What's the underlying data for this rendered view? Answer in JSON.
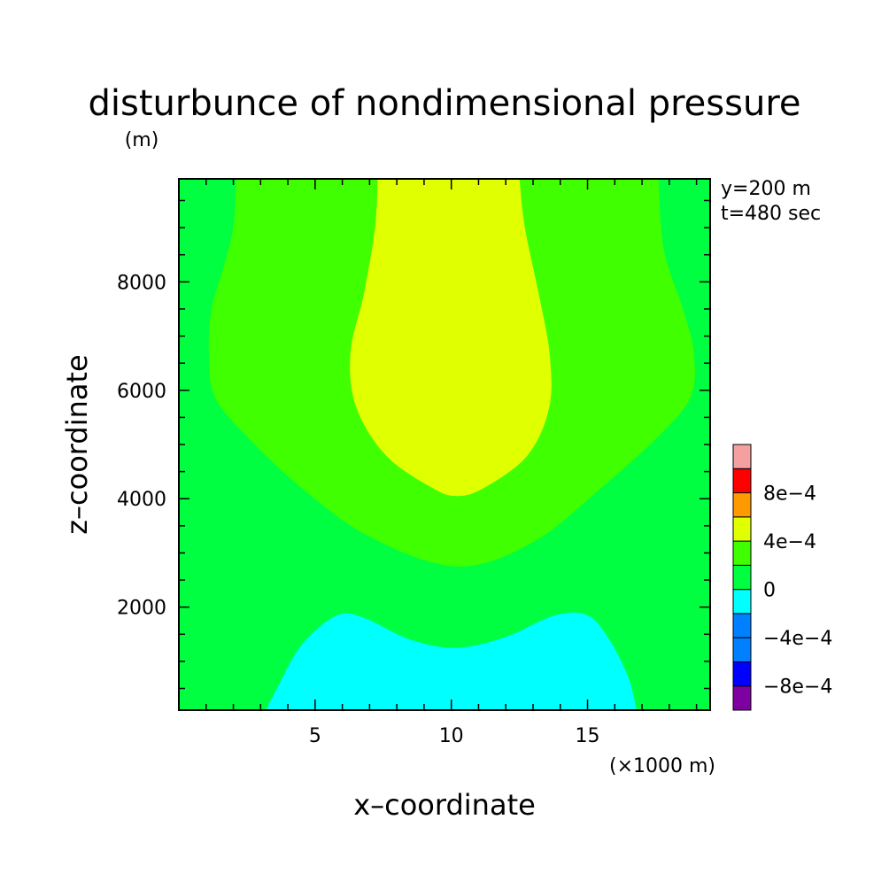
{
  "chart_data": {
    "type": "heatmap",
    "title": "disturbunce of nondimensional pressure",
    "y_unit_label": "(m)",
    "x_unit_label": "(×1000 m)",
    "xlabel": "x–coordinate",
    "ylabel": "z–coordinate",
    "info_lines": [
      "y=200 m",
      "t=480 sec"
    ],
    "xlim": [
      0,
      19.5
    ],
    "ylim": [
      100,
      9900
    ],
    "x_ticks": [
      5,
      10,
      15
    ],
    "x_tick_labels": [
      "5",
      "10",
      "15"
    ],
    "y_ticks": [
      2000,
      4000,
      6000,
      8000
    ],
    "y_tick_labels": [
      "2000",
      "4000",
      "6000",
      "8000"
    ],
    "colorbar": {
      "levels": [
        {
          "range": [
            -0.001,
            -0.0008
          ],
          "color": "#7f00a0"
        },
        {
          "range": [
            -0.0008,
            -0.0006
          ],
          "color": "#0000ff"
        },
        {
          "range": [
            -0.0006,
            -0.0004
          ],
          "color": "#0080ff"
        },
        {
          "range": [
            -0.0004,
            -0.0002
          ],
          "color": "#0080ff"
        },
        {
          "range": [
            -0.0002,
            0
          ],
          "color": "#00ffff"
        },
        {
          "range": [
            0,
            0.0002
          ],
          "color": "#00ff40"
        },
        {
          "range": [
            0.0002,
            0.0004
          ],
          "color": "#40ff00"
        },
        {
          "range": [
            0.0004,
            0.0006
          ],
          "color": "#e0ff00"
        },
        {
          "range": [
            0.0006,
            0.0008
          ],
          "color": "#ff9900"
        },
        {
          "range": [
            0.0008,
            0.001
          ],
          "color": "#ff0000"
        },
        {
          "range": [
            0.001,
            0.0012
          ],
          "color": "#f5a0a0"
        }
      ],
      "tick_labels": [
        "8e−4",
        "4e−4",
        "0",
        "−4e−4",
        "−8e−4"
      ]
    },
    "regions": [
      {
        "name": "background",
        "level": "0 to 2e-4",
        "color": "#00ff40",
        "outline": []
      },
      {
        "name": "positive-band",
        "level": "2e-4 to 4e-4",
        "color": "#40ff00",
        "outline": [
          [
            2.1,
            9900
          ],
          [
            2.0,
            9000
          ],
          [
            1.6,
            8200
          ],
          [
            1.2,
            7500
          ],
          [
            1.1,
            6700
          ],
          [
            1.3,
            5900
          ],
          [
            2.4,
            5200
          ],
          [
            4.5,
            4200
          ],
          [
            7.0,
            3300
          ],
          [
            10.2,
            2750
          ],
          [
            13.0,
            3200
          ],
          [
            15.5,
            4200
          ],
          [
            17.7,
            5200
          ],
          [
            18.8,
            5900
          ],
          [
            18.9,
            6700
          ],
          [
            18.5,
            7500
          ],
          [
            17.8,
            8600
          ],
          [
            17.6,
            9900
          ]
        ]
      },
      {
        "name": "high-pressure-core",
        "level": "4e-4 to 6e-4",
        "color": "#e0ff00",
        "outline": [
          [
            7.3,
            9900
          ],
          [
            7.2,
            9000
          ],
          [
            6.8,
            7800
          ],
          [
            6.3,
            6700
          ],
          [
            6.5,
            5700
          ],
          [
            7.6,
            4800
          ],
          [
            9.3,
            4200
          ],
          [
            10.2,
            4050
          ],
          [
            11.2,
            4200
          ],
          [
            12.8,
            4800
          ],
          [
            13.6,
            5700
          ],
          [
            13.6,
            6700
          ],
          [
            13.2,
            7800
          ],
          [
            12.7,
            9000
          ],
          [
            12.5,
            9900
          ]
        ]
      },
      {
        "name": "low-pressure-base",
        "level": "-2e-4 to 0",
        "color": "#00ffff",
        "outline": [
          [
            3.2,
            100
          ],
          [
            3.6,
            500
          ],
          [
            4.5,
            1300
          ],
          [
            5.8,
            1850
          ],
          [
            6.8,
            1800
          ],
          [
            8.5,
            1400
          ],
          [
            10.2,
            1250
          ],
          [
            12.0,
            1450
          ],
          [
            13.8,
            1850
          ],
          [
            15.0,
            1850
          ],
          [
            15.8,
            1400
          ],
          [
            16.5,
            700
          ],
          [
            16.8,
            100
          ]
        ]
      }
    ]
  }
}
